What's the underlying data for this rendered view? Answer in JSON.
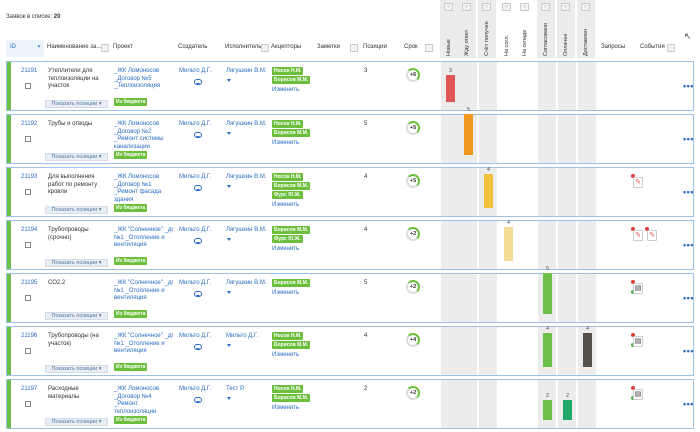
{
  "summary": {
    "label": "Заявок в списке:",
    "count": "20"
  },
  "columns": {
    "id": "ID",
    "name": "Наименование за...",
    "project": "Проект",
    "creator": "Создатель",
    "executor": "Исполнитель",
    "acceptors": "Акцепторы",
    "notes": "Заметки",
    "positions": "Позиции",
    "term": "Срок",
    "requests": "Запросы",
    "events": "События"
  },
  "status_columns": [
    "Новые",
    "Жду ответ",
    "Счёт получен",
    "На согл.",
    "На складе",
    "Согласовано",
    "Оплачен",
    "Доставлен"
  ],
  "show_positions": "Показать позиции",
  "change_label": "Изменить",
  "rows": [
    {
      "id": "21191",
      "name": "Утеплители для теплоизоляции на участок",
      "project": "_ЖК Ломоносов _Договор №5 _Теплоизоляция",
      "budget": "Из бюджета",
      "creator": "Мильто Д.Г.",
      "executor": "Лягушкин В.М.",
      "acceptors": [
        "Носов Н.М.",
        "Борисов М.М."
      ],
      "positions": "3",
      "term": "+6",
      "bars": [
        {
          "col": 0,
          "value": 3,
          "color": "#e05555"
        }
      ],
      "events": []
    },
    {
      "id": "21192",
      "name": "Трубы и отводы",
      "project": "_ЖК Ломоносов _Договор №2 _Ремонт системы канализации",
      "budget": "Из бюджета",
      "creator": "Мильто Д.Г.",
      "executor": "Лягушкин В.М.",
      "acceptors": [
        "Носов Н.М.",
        "Борисов М.М."
      ],
      "positions": "5",
      "term": "+5",
      "bars": [
        {
          "col": 1,
          "value": 5,
          "color": "#f29a1f"
        }
      ],
      "events": []
    },
    {
      "id": "21193",
      "name": "Для выполнения работ по ремонту кровли",
      "project": "_ЖК Ломоносов _Договор №1 _Ремонт фасада здания",
      "budget": "Из бюджета",
      "creator": "Мильто Д.Г.",
      "executor": "Лягушкин В.М.",
      "acceptors": [
        "Носов Н.М.",
        "Борисов М.М.",
        "Фурс Ю.Ж."
      ],
      "positions": "4",
      "term": "+5",
      "bars": [
        {
          "col": 2,
          "value": 4,
          "color": "#f0c23c"
        }
      ],
      "events": [
        "red"
      ]
    },
    {
      "id": "21194",
      "name": "Трубопроводы (срочно)",
      "project": "_ЖК \"Солнечное\" _дг №1 _Отопление и вентиляция",
      "budget": "Из бюджета",
      "creator": "Мильто Д.Г.",
      "executor": "Лягушкин В.М.",
      "acceptors": [
        "Борисов М.М.",
        "Фурс Ю.Ж."
      ],
      "positions": "4",
      "term": "+2",
      "bars": [
        {
          "col": 3,
          "value": 4,
          "color": "#f5dc94"
        }
      ],
      "events": [
        "red",
        "red"
      ]
    },
    {
      "id": "21195",
      "name": "СО2.2",
      "project": "_ЖК \"Солнечное\" _дг №1 _Отопление и вентиляция",
      "budget": "Из бюджета",
      "creator": "Мильто Д.Г.",
      "executor": "Лягушкин В.М.",
      "acceptors": [
        "Борисов М.М."
      ],
      "positions": "5",
      "term": "+2",
      "bars": [
        {
          "col": 5,
          "value": 5,
          "color": "#6cc04a"
        }
      ],
      "events": [
        "dark"
      ]
    },
    {
      "id": "21196",
      "name": "Трубопроводы (на участок)",
      "project": "_ЖК \"Солнечное\" _дг №1 _Отопление и вентиляция",
      "budget": "Из бюджета",
      "creator": "Мильто Д.Г.",
      "executor": "Мильто Д.Г.",
      "acceptors": [
        "Носов Н.М.",
        "Борисов М.М."
      ],
      "positions": "4",
      "term": "+4",
      "bars": [
        {
          "col": 5,
          "value": 4,
          "color": "#6cc04a"
        },
        {
          "col": 7,
          "value": 4,
          "color": "#555049"
        }
      ],
      "events": [
        "dark"
      ]
    },
    {
      "id": "21197",
      "name": "Расходные материалы",
      "project": "_ЖК Ломоносов _Договор №4 _Ремонт теплоизоляции",
      "budget": "Из бюджета",
      "creator": "Мильто Д.Г.",
      "executor": "Тест Р.",
      "acceptors": [
        "Носов Н.М.",
        "Борисов М.М."
      ],
      "positions": "2",
      "term": "+2",
      "bars": [
        {
          "col": 5,
          "value": 2,
          "color": "#6cc04a"
        },
        {
          "col": 6,
          "value": 2,
          "color": "#22a86a"
        }
      ],
      "events": [
        "dark"
      ]
    }
  ]
}
